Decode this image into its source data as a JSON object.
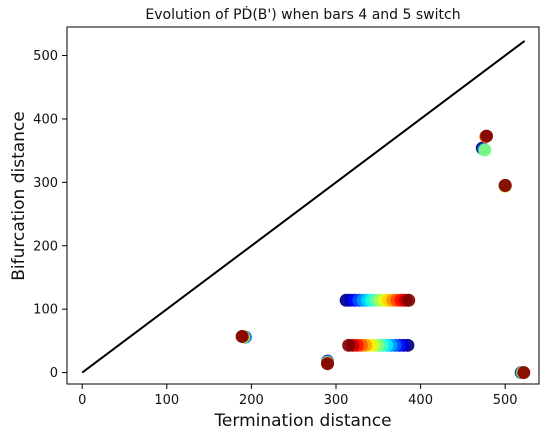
{
  "chart_data": {
    "type": "scatter",
    "title": "Evolution of PḊ(B') when bars 4 and 5 switch",
    "xlabel": "Termination distance",
    "ylabel": "Bifurcation distance",
    "xlim": [
      -18,
      540
    ],
    "ylim": [
      -18,
      545
    ],
    "xticks": [
      0,
      100,
      200,
      300,
      400,
      500
    ],
    "yticks": [
      0,
      100,
      200,
      300,
      400,
      500
    ],
    "grid": false,
    "colormap": "jet",
    "diagonal": {
      "x": [
        0,
        523
      ],
      "y": [
        0,
        523
      ],
      "color": "#000000"
    },
    "series": [
      {
        "x": [
          312,
          317,
          322,
          327,
          332,
          337,
          342,
          347,
          352,
          357,
          362,
          367,
          372,
          377,
          382,
          386
        ],
        "y": [
          114,
          114,
          114,
          114,
          114,
          114,
          114,
          114,
          114,
          114,
          114,
          114,
          114,
          114,
          114,
          114
        ],
        "color_order": "ascending"
      },
      {
        "x": [
          385,
          380,
          375,
          370,
          365,
          360,
          355,
          350,
          345,
          340,
          335,
          330,
          325,
          320,
          315
        ],
        "y": [
          43,
          43,
          43,
          43,
          43,
          43,
          43,
          43,
          43,
          43,
          43,
          43,
          43,
          43,
          43
        ],
        "color_order": "ascending"
      },
      {
        "x": [
          192,
          193,
          191,
          190,
          189
        ],
        "y": [
          56,
          56,
          56,
          57,
          57
        ],
        "color_order": "ascending"
      },
      {
        "x": [
          290,
          290,
          290,
          290,
          290
        ],
        "y": [
          18,
          17,
          16,
          15,
          14
        ],
        "color_order": "ascending"
      },
      {
        "x": [
          473,
          475,
          476,
          477,
          478
        ],
        "y": [
          354,
          352,
          351,
          372,
          373
        ],
        "color_order": "ascending"
      },
      {
        "x": [
          500,
          500,
          500,
          500
        ],
        "y": [
          295,
          294,
          294,
          295
        ],
        "color_order": "ascending"
      },
      {
        "x": [
          519,
          520,
          521,
          522
        ],
        "y": [
          0,
          0,
          0,
          0
        ],
        "color_order": "ascending"
      }
    ]
  }
}
